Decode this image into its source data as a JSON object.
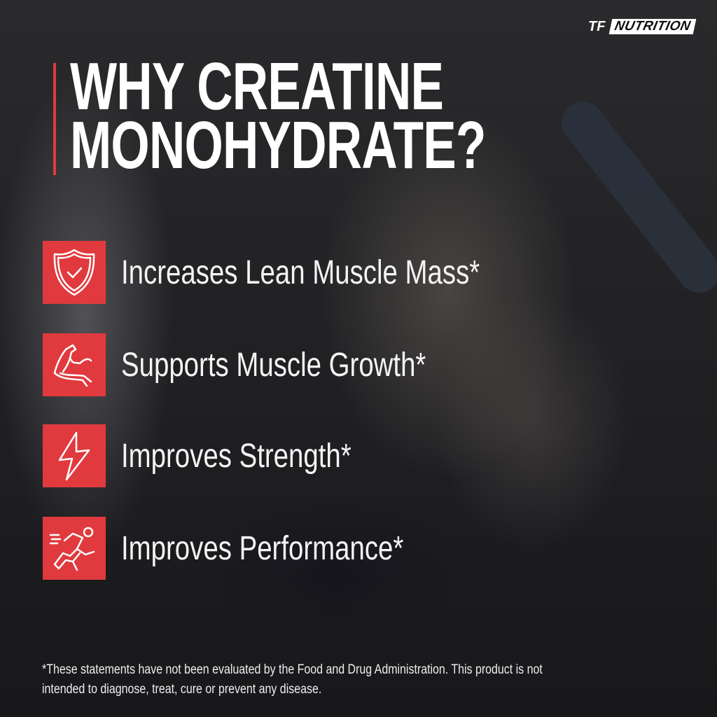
{
  "brand": {
    "logo_text": "NUTRITION",
    "logo_mark": "TF",
    "accent_color": "#e03a3e"
  },
  "title": {
    "line1": "WHY CREATINE",
    "line2": "MONOHYDRATE?"
  },
  "features": [
    {
      "icon": "shield-check-icon",
      "label": "Increases Lean Muscle Mass*"
    },
    {
      "icon": "flexed-arm-icon",
      "label": "Supports Muscle Growth*"
    },
    {
      "icon": "lightning-bolt-icon",
      "label": "Improves Strength*"
    },
    {
      "icon": "running-person-icon",
      "label": "Improves Performance*"
    }
  ],
  "disclaimer": {
    "line1": "*These statements have not been evaluated by the Food and Drug Administration. This product is not",
    "line2": "intended to diagnose, treat, cure or prevent any disease."
  }
}
